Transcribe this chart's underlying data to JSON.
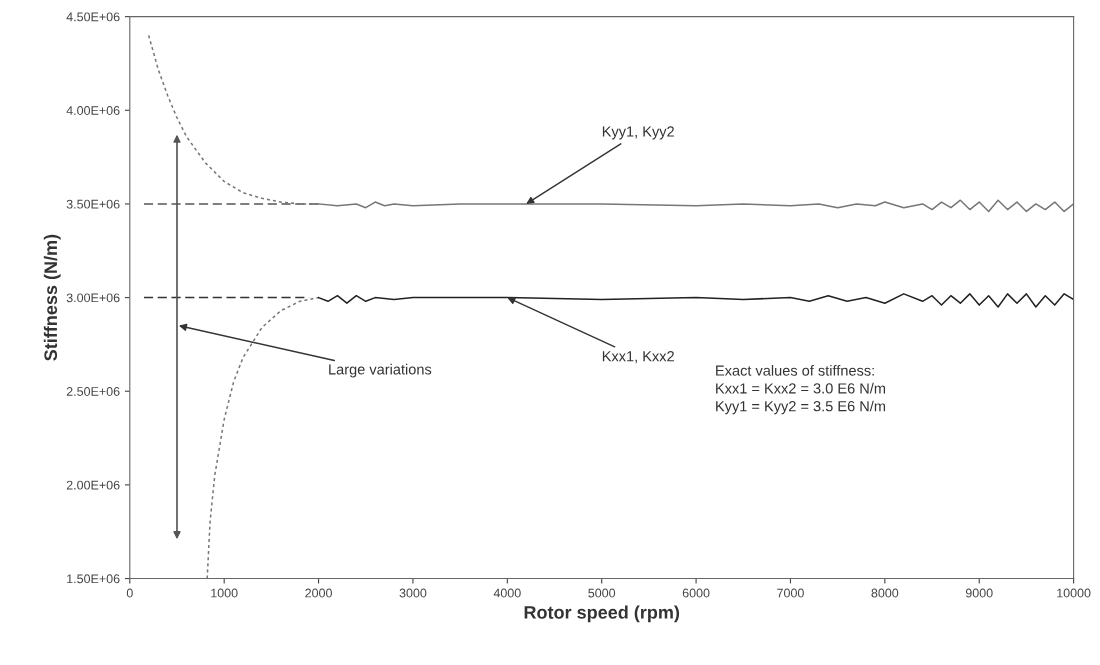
{
  "chart_data": {
    "type": "line",
    "xlabel": "Rotor speed (rpm)",
    "ylabel": "Stiffness (N/m)",
    "xlim": [
      0,
      10000
    ],
    "xticks": [
      0,
      1000,
      2000,
      3000,
      4000,
      5000,
      6000,
      7000,
      8000,
      9000,
      10000
    ],
    "ylim": [
      1500000,
      4500000
    ],
    "yticks": [
      {
        "value": 1500000,
        "label": "1.50E+06"
      },
      {
        "value": 2000000,
        "label": "2.00E+06"
      },
      {
        "value": 2500000,
        "label": "2.50E+06"
      },
      {
        "value": 3000000,
        "label": "3.00E+06"
      },
      {
        "value": 3500000,
        "label": "3.50E+06"
      },
      {
        "value": 4000000,
        "label": "4.00E+06"
      },
      {
        "value": 4500000,
        "label": "4.50E+06"
      }
    ],
    "grid": false,
    "legend": false,
    "marker": "none",
    "series": [
      {
        "color": "#555555",
        "line_style": "dashed",
        "x": [
          150,
          2000
        ],
        "values": [
          3500000,
          3500000
        ]
      },
      {
        "color": "#333333",
        "line_style": "dashed",
        "x": [
          150,
          1900
        ],
        "values": [
          3000000,
          3000000
        ]
      },
      {
        "color": "#777777",
        "line_style": "dotted",
        "x": [
          200,
          300,
          400,
          500,
          600,
          800,
          1000,
          1200,
          1400,
          1600,
          1800,
          2000
        ],
        "values": [
          4400000,
          4220000,
          4080000,
          3960000,
          3860000,
          3720000,
          3620000,
          3560000,
          3530000,
          3510000,
          3500000,
          3500000
        ]
      },
      {
        "color": "#777777",
        "line_style": "dotted",
        "x": [
          820,
          850,
          900,
          1000,
          1100,
          1200,
          1400,
          1600,
          1800,
          2000
        ],
        "values": [
          1500000,
          1800000,
          2050000,
          2350000,
          2550000,
          2680000,
          2840000,
          2930000,
          2980000,
          3000000
        ]
      },
      {
        "color": "#777777",
        "line_style": "solid",
        "x": [
          2000,
          2200,
          2400,
          2500,
          2600,
          2700,
          2800,
          3000,
          3500,
          4000,
          5000,
          6000,
          6500,
          7000,
          7300,
          7500,
          7700,
          7900,
          8000,
          8200,
          8400,
          8500,
          8600,
          8700,
          8800,
          8900,
          9000,
          9100,
          9200,
          9300,
          9400,
          9500,
          9600,
          9700,
          9800,
          9900,
          10000
        ],
        "values": [
          3500000,
          3490000,
          3500000,
          3480000,
          3510000,
          3490000,
          3500000,
          3490000,
          3500000,
          3500000,
          3500000,
          3490000,
          3500000,
          3490000,
          3500000,
          3480000,
          3500000,
          3490000,
          3510000,
          3480000,
          3500000,
          3470000,
          3510000,
          3480000,
          3520000,
          3470000,
          3510000,
          3460000,
          3520000,
          3470000,
          3510000,
          3460000,
          3500000,
          3470000,
          3510000,
          3460000,
          3500000
        ]
      },
      {
        "color": "#222222",
        "line_style": "solid",
        "x": [
          2000,
          2100,
          2200,
          2300,
          2400,
          2500,
          2600,
          2800,
          3000,
          4000,
          5000,
          6000,
          6500,
          7000,
          7200,
          7400,
          7600,
          7800,
          8000,
          8200,
          8400,
          8500,
          8600,
          8700,
          8800,
          8900,
          9000,
          9100,
          9200,
          9300,
          9400,
          9500,
          9600,
          9700,
          9800,
          9900,
          10000
        ],
        "values": [
          3000000,
          2980000,
          3010000,
          2970000,
          3010000,
          2980000,
          3000000,
          2990000,
          3000000,
          3000000,
          2990000,
          3000000,
          2990000,
          3000000,
          2980000,
          3010000,
          2980000,
          3000000,
          2970000,
          3020000,
          2980000,
          3010000,
          2960000,
          3010000,
          2970000,
          3020000,
          2960000,
          3010000,
          2950000,
          3020000,
          2970000,
          3020000,
          2950000,
          3010000,
          2960000,
          3020000,
          2990000
        ]
      }
    ],
    "annotations": [
      {
        "text": "Kyy1, Kyy2",
        "x": 4200,
        "y": 3500000
      },
      {
        "text": "Kxx1, Kxx2",
        "x": 4000,
        "y": 3000000
      },
      "Large variations",
      "Exact values of stiffness:\nKxx1 = Kxx2 = 3.0 E6 N/m\nKyy1 = Kyy2 = 3.5 E6 N/m"
    ]
  }
}
